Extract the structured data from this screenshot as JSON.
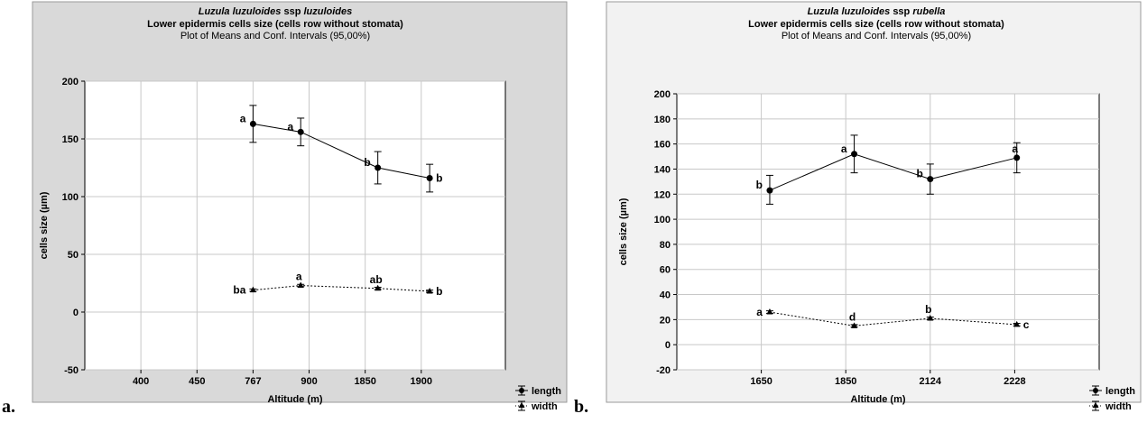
{
  "panels": [
    {
      "letter": "a.",
      "title": "Luzula luzuloides ssp luzuloides",
      "title_prefix": "Luzula luzuloides",
      "title_suffix": "luzuloides",
      "title_mid": "ssp",
      "subtitle": "Lower epidermis cells size (cells row  without stomata)",
      "subtitle2": "Plot of Means and Conf. Intervals (95,00%)",
      "legend": [
        "length",
        "width"
      ],
      "colors": {
        "frame": "#d9d9d9",
        "plot": "#ffffff",
        "grid": "#c0c0c0",
        "series": "#000000"
      },
      "chart_data": {
        "type": "line",
        "categories": [
          "400",
          "450",
          "767",
          "900",
          "1850",
          "1900"
        ],
        "xlabel": "Altitude (m)",
        "ylabel": "cells size (µm)",
        "ylim": [
          -50,
          200
        ],
        "yticks": [
          -50,
          0,
          50,
          100,
          150,
          200
        ],
        "grid": true,
        "legend_position": "bottom-right",
        "series": [
          {
            "name": "length",
            "marker": "circle",
            "line": "solid",
            "points": [
              {
                "category": "767",
                "value": 163,
                "lower": 147,
                "upper": 179,
                "label": "a",
                "label_side": "left"
              },
              {
                "category": "900",
                "value": 156,
                "lower": 144,
                "upper": 168,
                "label": "a",
                "label_side": "left"
              },
              {
                "category": "1850",
                "value": 125,
                "lower": 111,
                "upper": 139,
                "label": "b",
                "label_side": "left"
              },
              {
                "category": "1900",
                "value": 116,
                "lower": 104,
                "upper": 128,
                "label": "b",
                "label_side": "right"
              }
            ]
          },
          {
            "name": "width",
            "marker": "triangle",
            "line": "dotted",
            "points": [
              {
                "category": "767",
                "value": 19,
                "lower": 18,
                "upper": 20,
                "label": "ba",
                "label_side": "left"
              },
              {
                "category": "900",
                "value": 23,
                "lower": 22,
                "upper": 24,
                "label": "a",
                "label_side": "top"
              },
              {
                "category": "1850",
                "value": 20.5,
                "lower": 19.5,
                "upper": 21.5,
                "label": "ab",
                "label_side": "top"
              },
              {
                "category": "1900",
                "value": 18,
                "lower": 17,
                "upper": 19,
                "label": "b",
                "label_side": "right"
              }
            ]
          }
        ]
      }
    },
    {
      "letter": "b.",
      "title": "Luzula luzuloides ssp rubella",
      "title_prefix": "Luzula luzuloides",
      "title_suffix": "rubella",
      "title_mid": "ssp",
      "subtitle": "Lower epidermis cells size (cells row  without stomata)",
      "subtitle2": "Plot of Means and Conf. Intervals (95,00%)",
      "legend": [
        "length",
        "width"
      ],
      "colors": {
        "frame": "#f2f2f2",
        "plot": "#ffffff",
        "grid": "#c0c0c0",
        "series": "#000000"
      },
      "chart_data": {
        "type": "line",
        "categories": [
          "1650",
          "1850",
          "2124",
          "2228"
        ],
        "xlabel": "Altitude (m)",
        "ylabel": "cells size (µm)",
        "ylim": [
          -20,
          200
        ],
        "yticks": [
          -20,
          0,
          20,
          40,
          60,
          80,
          100,
          120,
          140,
          160,
          180,
          200
        ],
        "grid": true,
        "legend_position": "bottom-right",
        "series": [
          {
            "name": "length",
            "marker": "circle",
            "line": "solid",
            "points": [
              {
                "category": "1650",
                "value": 123,
                "lower": 112,
                "upper": 135,
                "label": "b",
                "label_side": "left"
              },
              {
                "category": "1850",
                "value": 152,
                "lower": 137,
                "upper": 167,
                "label": "a",
                "label_side": "left"
              },
              {
                "category": "2124",
                "value": 132,
                "lower": 120,
                "upper": 144,
                "label": "b",
                "label_side": "left"
              },
              {
                "category": "2228",
                "value": 149,
                "lower": 137,
                "upper": 161,
                "label": "a",
                "label_side": "top"
              }
            ]
          },
          {
            "name": "width",
            "marker": "triangle",
            "line": "dotted",
            "points": [
              {
                "category": "1650",
                "value": 26,
                "lower": 25,
                "upper": 27,
                "label": "a",
                "label_side": "left"
              },
              {
                "category": "1850",
                "value": 15,
                "lower": 14,
                "upper": 16,
                "label": "d",
                "label_side": "top"
              },
              {
                "category": "2124",
                "value": 21,
                "lower": 20,
                "upper": 22,
                "label": "b",
                "label_side": "top"
              },
              {
                "category": "2228",
                "value": 16,
                "lower": 15,
                "upper": 17,
                "label": "c",
                "label_side": "right"
              }
            ]
          }
        ]
      }
    }
  ]
}
